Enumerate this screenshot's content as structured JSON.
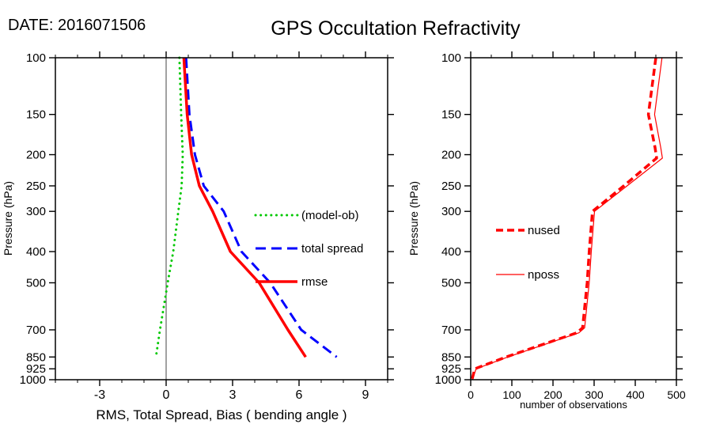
{
  "header": {
    "date_label": "DATE: 2016071506",
    "title": "GPS Occultation Refractivity"
  },
  "chart_data": [
    {
      "type": "line",
      "title": "",
      "xlabel": "RMS, Total Spread, Bias ( bending angle )",
      "ylabel": "Pressure (hPa)",
      "xlim": [
        -5,
        10
      ],
      "xticks": [
        -3,
        0,
        3,
        6,
        9
      ],
      "x_minor_step": 1,
      "yscale": "log",
      "ylim": [
        100,
        1000
      ],
      "yticks": [
        100,
        150,
        200,
        250,
        300,
        400,
        500,
        700,
        850,
        925,
        1000
      ],
      "grid": false,
      "zero_line": true,
      "legend_position": "inside-right",
      "series": [
        {
          "name": "(model-ob)",
          "color": "#00c800",
          "style": "dotted",
          "width": 3,
          "dash": [
            0.1,
            6.5
          ],
          "pressure": [
            100,
            150,
            200,
            250,
            300,
            400,
            500,
            700,
            850
          ],
          "values": [
            0.6,
            0.68,
            0.75,
            0.7,
            0.55,
            0.32,
            0.07,
            -0.28,
            -0.46
          ]
        },
        {
          "name": "total spread",
          "color": "#0000ff",
          "style": "dashed",
          "width": 3,
          "dash": [
            13,
            7
          ],
          "pressure": [
            100,
            150,
            200,
            250,
            300,
            400,
            500,
            700,
            850
          ],
          "values": [
            0.9,
            1.05,
            1.3,
            1.7,
            2.6,
            3.4,
            4.7,
            6.1,
            7.7
          ]
        },
        {
          "name": "rmse",
          "color": "#ff0000",
          "style": "solid",
          "width": 3.5,
          "dash": null,
          "pressure": [
            100,
            150,
            200,
            250,
            300,
            400,
            500,
            700,
            850
          ],
          "values": [
            0.8,
            0.95,
            1.15,
            1.5,
            2.1,
            2.9,
            4.2,
            5.5,
            6.3
          ]
        }
      ]
    },
    {
      "type": "line",
      "title": "",
      "xlabel": "number of observations",
      "ylabel": "Pressure (hPa)",
      "xlim": [
        0,
        500
      ],
      "xticks": [
        0,
        100,
        200,
        300,
        400,
        500
      ],
      "x_minor_step": 50,
      "yscale": "log",
      "ylim": [
        100,
        1000
      ],
      "yticks": [
        100,
        150,
        200,
        250,
        300,
        400,
        500,
        700,
        850,
        925,
        1000
      ],
      "grid": false,
      "zero_line": false,
      "legend_position": "inside-left",
      "series": [
        {
          "name": "nused",
          "color": "#ff0000",
          "style": "dashed",
          "width": 3.5,
          "dash": [
            9,
            5
          ],
          "pressure": [
            100,
            150,
            190,
            205,
            250,
            300,
            400,
            500,
            690,
            715,
            850,
            925,
            1000
          ],
          "values": [
            450,
            432,
            448,
            452,
            372,
            296,
            288,
            283,
            272,
            258,
            86,
            10,
            3
          ]
        },
        {
          "name": "nposs",
          "color": "#ff0000",
          "style": "solid",
          "width": 1.2,
          "dash": null,
          "pressure": [
            100,
            150,
            190,
            205,
            250,
            300,
            400,
            500,
            690,
            715,
            850,
            925,
            1000
          ],
          "values": [
            465,
            447,
            462,
            466,
            380,
            301,
            293,
            288,
            277,
            263,
            90,
            13,
            4
          ]
        }
      ]
    }
  ]
}
